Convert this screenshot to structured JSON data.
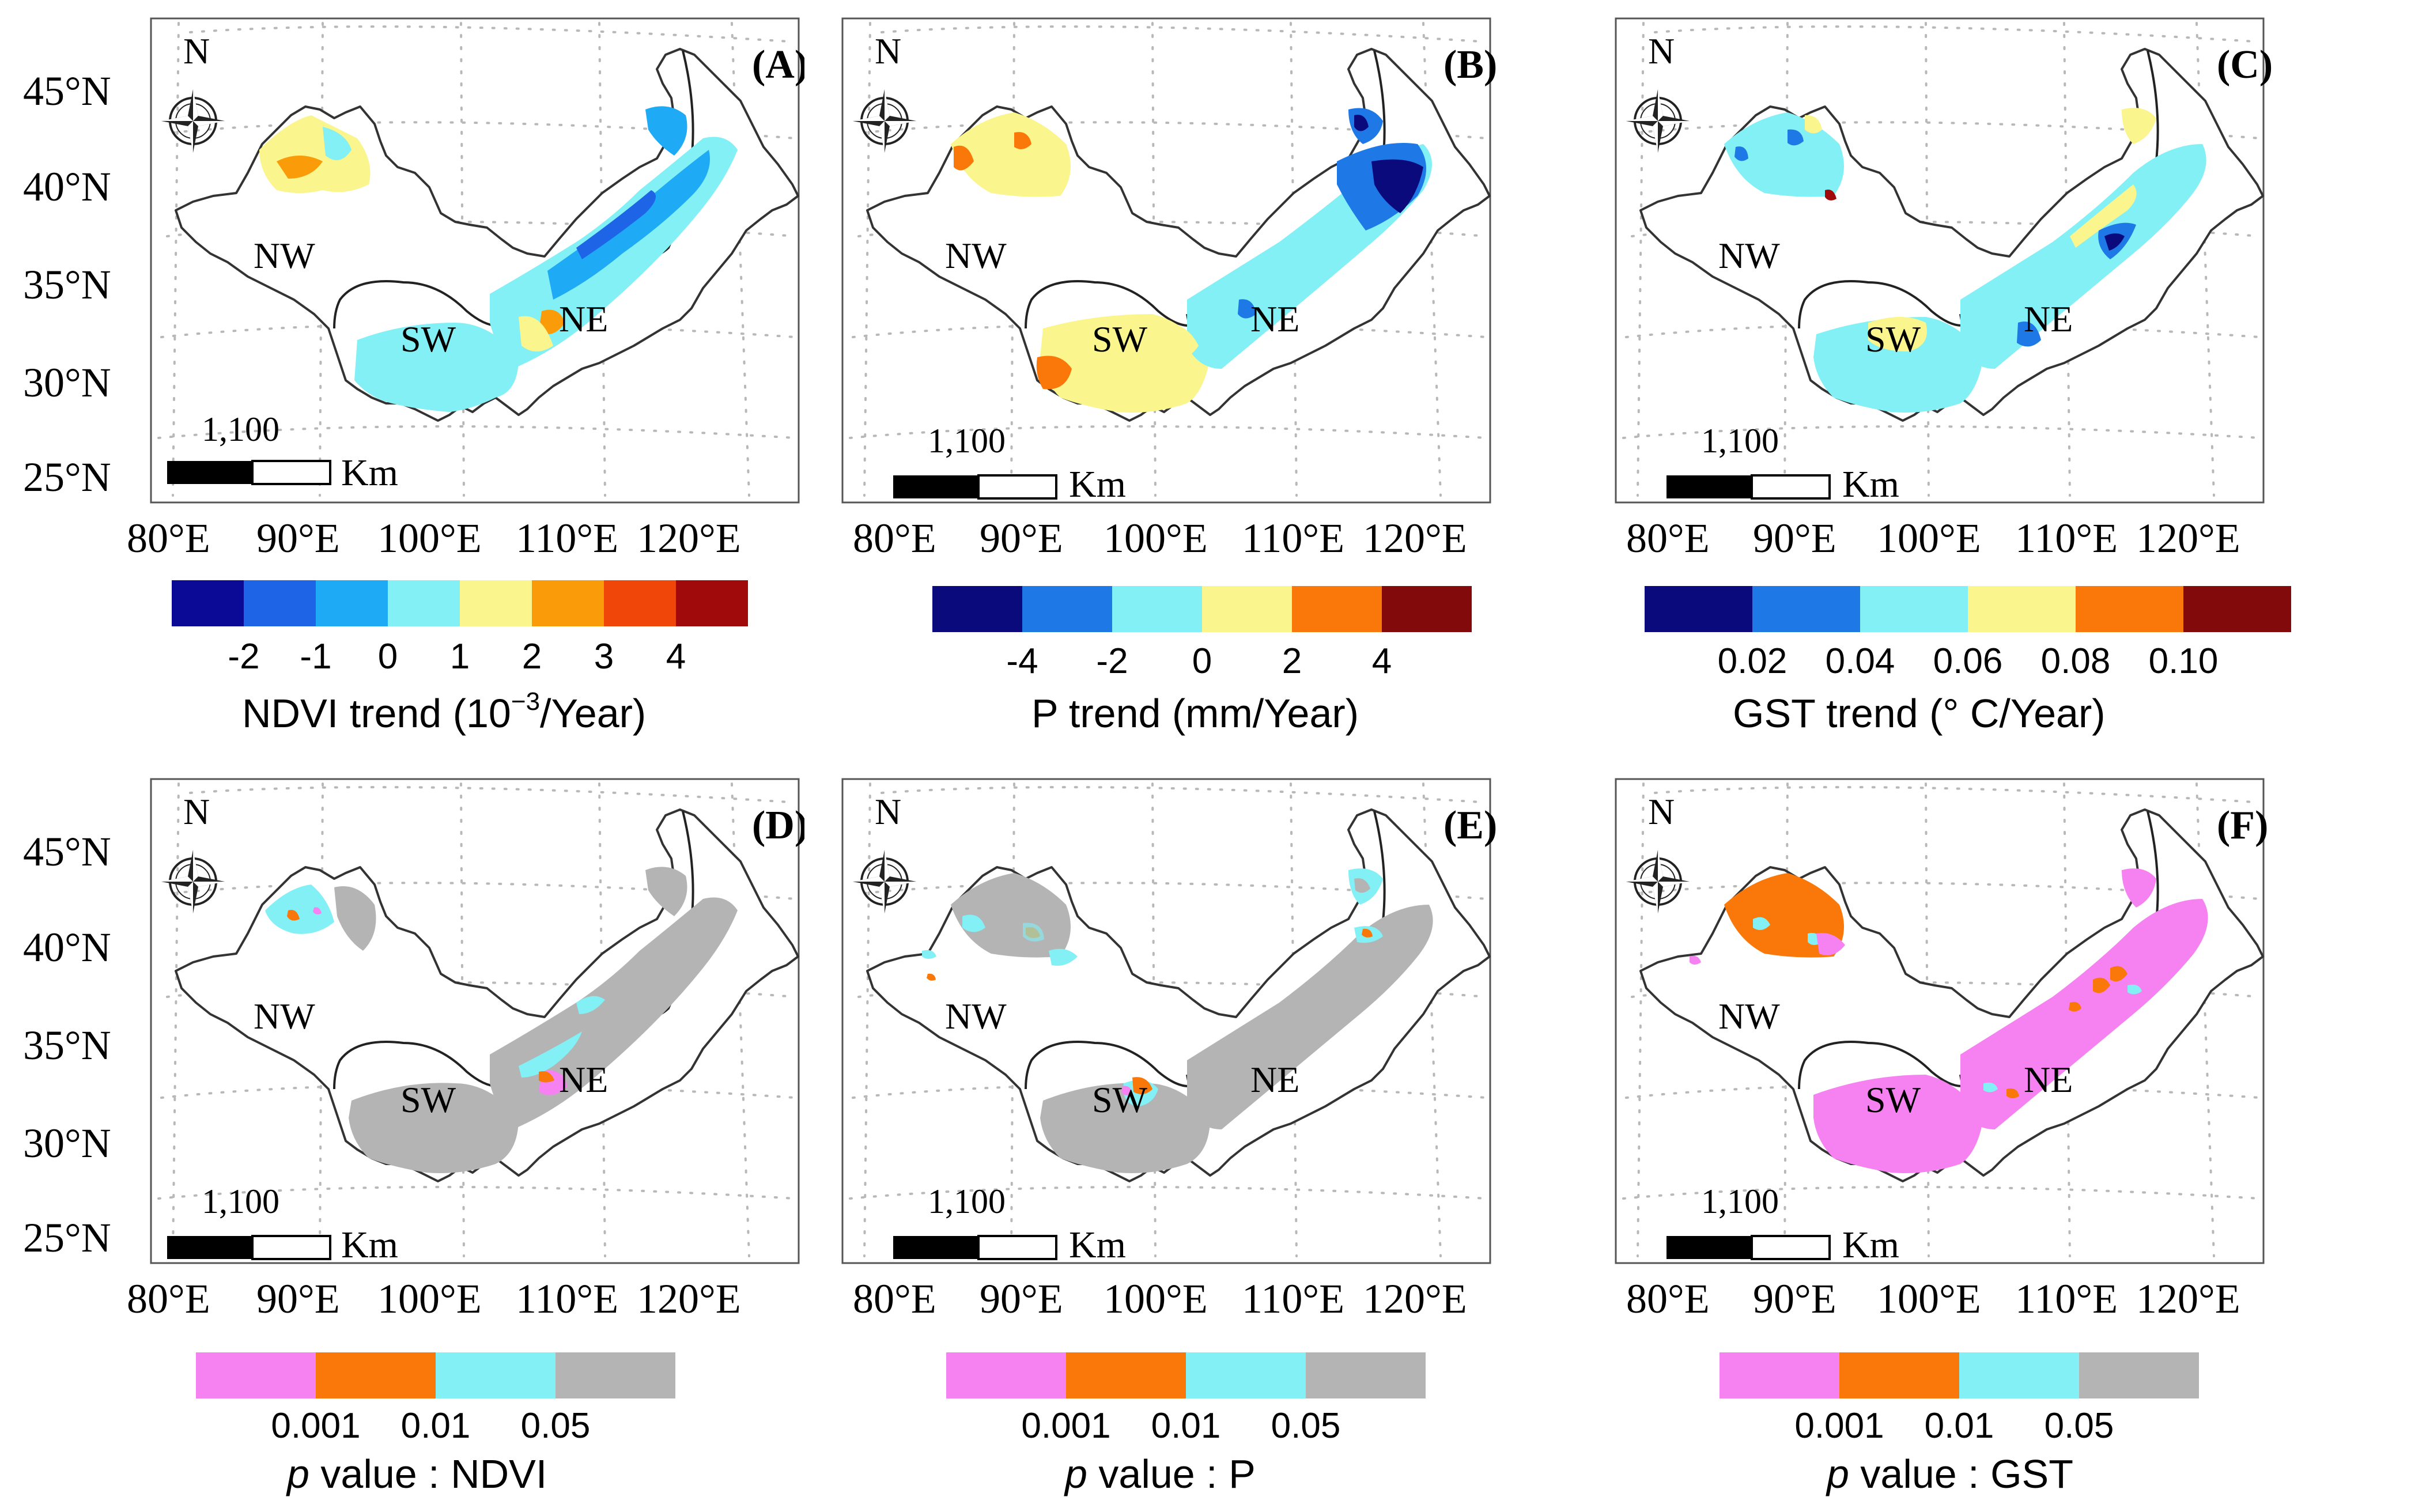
{
  "map": {
    "north_label": "N",
    "region_labels": [
      "NW",
      "SW",
      "NE"
    ],
    "lat_ticks": [
      "45°N",
      "40°N",
      "35°N",
      "30°N",
      "25°N"
    ],
    "lon_ticks": [
      "80°E",
      "90°E",
      "100°E",
      "110°E",
      "120°E"
    ],
    "scale_bar": {
      "value": "1,100",
      "unit": "Km"
    }
  },
  "panels": [
    {
      "id": "A",
      "title": "(A)",
      "legend": {
        "colors": [
          "#0a0a96",
          "#1e64e6",
          "#1eaaf5",
          "#82f0f5",
          "#faf58c",
          "#fa9b0a",
          "#f0460a",
          "#a00a0a"
        ],
        "labels": [
          "-2",
          "-1",
          "0",
          "1",
          "2",
          "3",
          "4"
        ],
        "title_pre": "NDVI trend (10",
        "title_sup": "−3",
        "title_post": "/Year)"
      }
    },
    {
      "id": "B",
      "title": "(B)",
      "legend": {
        "colors": [
          "#0a0a7d",
          "#1e78e6",
          "#82f0f5",
          "#faf58c",
          "#fa780a",
          "#820a0a"
        ],
        "labels": [
          "-4",
          "-2",
          "0",
          "2",
          "4"
        ],
        "title": "P trend (mm/Year)"
      }
    },
    {
      "id": "C",
      "title": "(C)",
      "legend": {
        "colors": [
          "#0a0a7d",
          "#1e78e6",
          "#82f0f5",
          "#faf58c",
          "#fa780a",
          "#820a0a"
        ],
        "labels": [
          "0.02",
          "0.04",
          "0.06",
          "0.08",
          "0.10"
        ],
        "title": "GST trend (° C/Year)"
      }
    },
    {
      "id": "D",
      "title": "(D)",
      "legend": {
        "colors": [
          "#f582f0",
          "#fa780a",
          "#82f0f5",
          "#b4b4b4"
        ],
        "labels": [
          "0.001",
          "0.01",
          "0.05"
        ],
        "title_it": "p",
        "title_post": " value : NDVI"
      }
    },
    {
      "id": "E",
      "title": "(E)",
      "legend": {
        "colors": [
          "#f582f0",
          "#fa780a",
          "#82f0f5",
          "#b4b4b4"
        ],
        "labels": [
          "0.001",
          "0.01",
          "0.05"
        ],
        "title_it": "p",
        "title_post": " value : P"
      }
    },
    {
      "id": "F",
      "title": "(F)",
      "legend": {
        "colors": [
          "#f582f0",
          "#fa780a",
          "#82f0f5",
          "#b4b4b4"
        ],
        "labels": [
          "0.001",
          "0.01",
          "0.05"
        ],
        "title_it": "p",
        "title_post": " value : GST"
      }
    }
  ]
}
